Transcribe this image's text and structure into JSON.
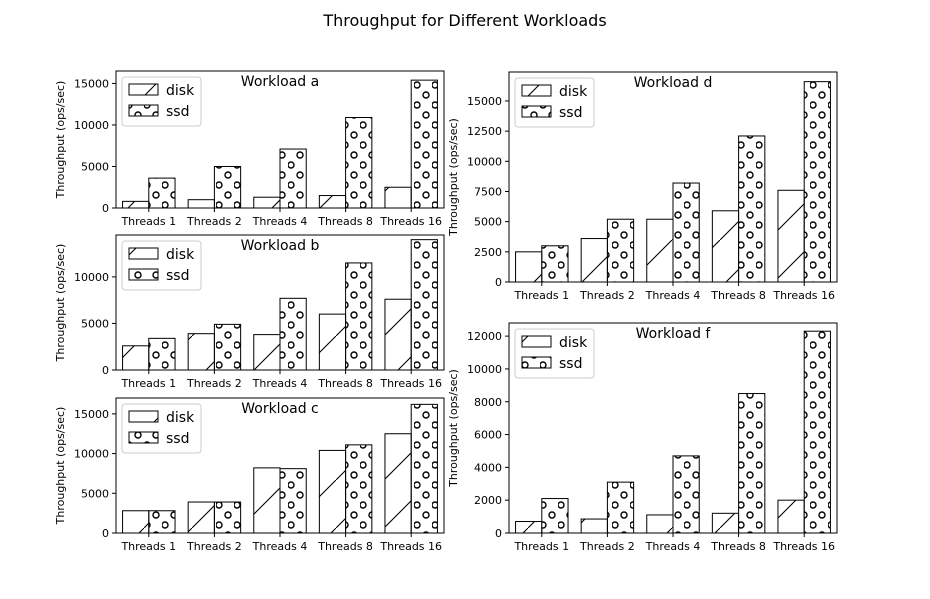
{
  "figure_title": "Throughput for Different Workloads",
  "colors": {
    "bar_fill": "#ffffff",
    "edge": "#000000",
    "background": "#ffffff"
  },
  "chart_data": [
    {
      "type": "bar",
      "title": "Workload a",
      "ylabel": "Throughput (ops/sec)",
      "categories": [
        "Threads 1",
        "Threads 2",
        "Threads 4",
        "Threads 8",
        "Threads 16"
      ],
      "ylim": [
        0,
        16500
      ],
      "yticks": [
        0,
        5000,
        10000,
        15000
      ],
      "legend": "top-left",
      "series": [
        {
          "name": "disk",
          "hatch": "diagonal",
          "values": [
            800,
            1000,
            1300,
            1500,
            2500
          ]
        },
        {
          "name": "ssd",
          "hatch": "circles",
          "values": [
            3600,
            5000,
            7100,
            10900,
            15400
          ]
        }
      ]
    },
    {
      "type": "bar",
      "title": "Workload b",
      "ylabel": "Throughput (ops/sec)",
      "categories": [
        "Threads 1",
        "Threads 2",
        "Threads 4",
        "Threads 8",
        "Threads 16"
      ],
      "ylim": [
        0,
        14500
      ],
      "yticks": [
        0,
        5000,
        10000
      ],
      "legend": "top-left",
      "series": [
        {
          "name": "disk",
          "hatch": "diagonal",
          "values": [
            2600,
            3900,
            3800,
            6000,
            7600
          ]
        },
        {
          "name": "ssd",
          "hatch": "circles",
          "values": [
            3400,
            4900,
            7700,
            11500,
            14000
          ]
        }
      ]
    },
    {
      "type": "bar",
      "title": "Workload c",
      "ylabel": "Throughput (ops/sec)",
      "categories": [
        "Threads 1",
        "Threads 2",
        "Threads 4",
        "Threads 8",
        "Threads 16"
      ],
      "ylim": [
        0,
        17000
      ],
      "yticks": [
        0,
        5000,
        10000,
        15000
      ],
      "legend": "top-left",
      "series": [
        {
          "name": "disk",
          "hatch": "diagonal",
          "values": [
            2800,
            3900,
            8200,
            10400,
            12500
          ]
        },
        {
          "name": "ssd",
          "hatch": "circles",
          "values": [
            2800,
            3900,
            8100,
            11100,
            16200
          ]
        }
      ]
    },
    {
      "type": "bar",
      "title": "Workload d",
      "ylabel": "Throughput (ops/sec)",
      "categories": [
        "Threads 1",
        "Threads 2",
        "Threads 4",
        "Threads 8",
        "Threads 16"
      ],
      "ylim": [
        0,
        17400
      ],
      "yticks": [
        0,
        2500,
        5000,
        7500,
        10000,
        12500,
        15000
      ],
      "legend": "top-left",
      "series": [
        {
          "name": "disk",
          "hatch": "diagonal",
          "values": [
            2500,
            3600,
            5200,
            5900,
            7600
          ]
        },
        {
          "name": "ssd",
          "hatch": "circles",
          "values": [
            3000,
            5200,
            8200,
            12100,
            16600
          ]
        }
      ]
    },
    {
      "type": "bar",
      "title": "Workload f",
      "ylabel": "Throughput (ops/sec)",
      "categories": [
        "Threads 1",
        "Threads 2",
        "Threads 4",
        "Threads 8",
        "Threads 16"
      ],
      "ylim": [
        0,
        12800
      ],
      "yticks": [
        0,
        2000,
        4000,
        6000,
        8000,
        10000,
        12000
      ],
      "legend": "top-left",
      "series": [
        {
          "name": "disk",
          "hatch": "diagonal",
          "values": [
            700,
            850,
            1100,
            1200,
            2000
          ]
        },
        {
          "name": "ssd",
          "hatch": "circles",
          "values": [
            2100,
            3100,
            4700,
            8500,
            12300
          ]
        }
      ]
    }
  ]
}
